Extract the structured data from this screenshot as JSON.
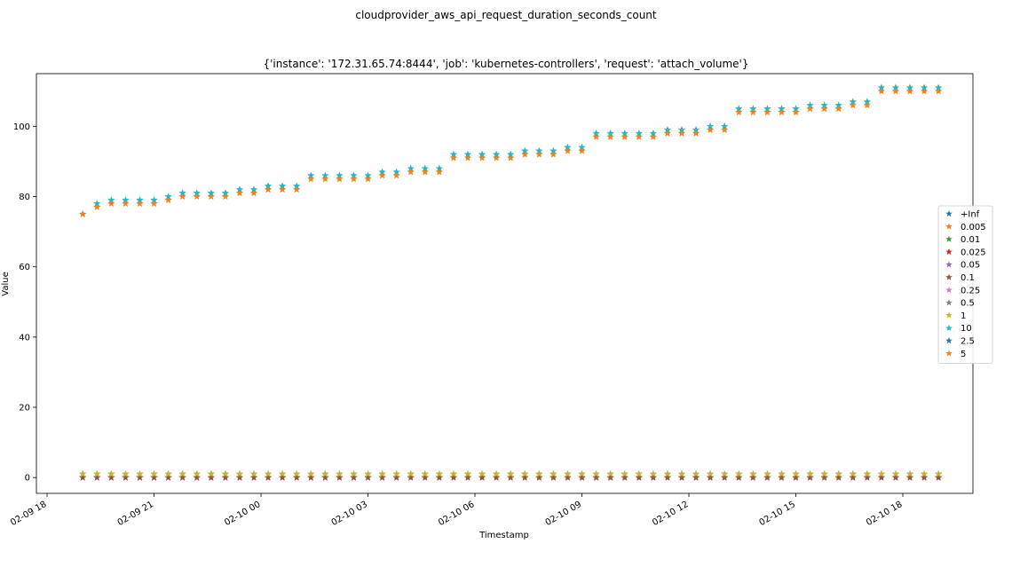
{
  "chart_data": {
    "type": "scatter",
    "title": "cloudprovider_aws_api_request_duration_seconds_count",
    "subtitle": "{'instance': '172.31.65.74:8444', 'job': 'kubernetes-controllers', 'request': 'attach_volume'}",
    "xlabel": "Timestamp",
    "ylabel": "Value",
    "xlim": [
      "2025-02-09 17:42",
      "2025-02-10 19:58"
    ],
    "ylim": [
      -4.5,
      115
    ],
    "x_ticks": [
      "02-09 18",
      "02-09 21",
      "02-10 00",
      "02-10 03",
      "02-10 06",
      "02-10 09",
      "02-10 12",
      "02-10 15",
      "02-10 18"
    ],
    "y_ticks": [
      "0",
      "20",
      "40",
      "60",
      "80",
      "100"
    ],
    "marker": "star",
    "grid": false,
    "legend_position": "center-right",
    "x": [
      "2025-02-09 19:00",
      "2025-02-09 19:24",
      "2025-02-09 19:48",
      "2025-02-09 20:12",
      "2025-02-09 20:36",
      "2025-02-09 21:00",
      "2025-02-09 21:24",
      "2025-02-09 21:48",
      "2025-02-09 22:12",
      "2025-02-09 22:36",
      "2025-02-09 23:00",
      "2025-02-09 23:24",
      "2025-02-09 23:48",
      "2025-02-10 00:12",
      "2025-02-10 00:36",
      "2025-02-10 01:00",
      "2025-02-10 01:24",
      "2025-02-10 01:48",
      "2025-02-10 02:12",
      "2025-02-10 02:36",
      "2025-02-10 03:00",
      "2025-02-10 03:24",
      "2025-02-10 03:48",
      "2025-02-10 04:12",
      "2025-02-10 04:36",
      "2025-02-10 05:00",
      "2025-02-10 05:24",
      "2025-02-10 05:48",
      "2025-02-10 06:12",
      "2025-02-10 06:36",
      "2025-02-10 07:00",
      "2025-02-10 07:24",
      "2025-02-10 07:48",
      "2025-02-10 08:12",
      "2025-02-10 08:36",
      "2025-02-10 09:00",
      "2025-02-10 09:24",
      "2025-02-10 09:48",
      "2025-02-10 10:12",
      "2025-02-10 10:36",
      "2025-02-10 11:00",
      "2025-02-10 11:24",
      "2025-02-10 11:48",
      "2025-02-10 12:12",
      "2025-02-10 12:36",
      "2025-02-10 13:00",
      "2025-02-10 13:24",
      "2025-02-10 13:48",
      "2025-02-10 14:12",
      "2025-02-10 14:36",
      "2025-02-10 15:00",
      "2025-02-10 15:24",
      "2025-02-10 15:48",
      "2025-02-10 16:12",
      "2025-02-10 16:36",
      "2025-02-10 17:00",
      "2025-02-10 17:24",
      "2025-02-10 17:48",
      "2025-02-10 18:12",
      "2025-02-10 18:36",
      "2025-02-10 19:00"
    ],
    "series": [
      {
        "name": "+Inf",
        "color": "#1f77b4",
        "values": [
          75,
          78,
          79,
          79,
          79,
          79,
          80,
          81,
          81,
          81,
          81,
          82,
          82,
          83,
          83,
          83,
          86,
          86,
          86,
          86,
          86,
          87,
          87,
          88,
          88,
          88,
          92,
          92,
          92,
          92,
          92,
          93,
          93,
          93,
          94,
          94,
          98,
          98,
          98,
          98,
          98,
          99,
          99,
          99,
          100,
          100,
          105,
          105,
          105,
          105,
          105,
          106,
          106,
          106,
          107,
          107,
          111,
          111,
          111,
          111,
          111
        ]
      },
      {
        "name": "0.005",
        "color": "#ff7f0e",
        "values": [
          0,
          0,
          0,
          0,
          0,
          0,
          0,
          0,
          0,
          0,
          0,
          0,
          0,
          0,
          0,
          0,
          0,
          0,
          0,
          0,
          0,
          0,
          0,
          0,
          0,
          0,
          0,
          0,
          0,
          0,
          0,
          0,
          0,
          0,
          0,
          0,
          0,
          0,
          0,
          0,
          0,
          0,
          0,
          0,
          0,
          0,
          0,
          0,
          0,
          0,
          0,
          0,
          0,
          0,
          0,
          0,
          0,
          0,
          0,
          0,
          0
        ]
      },
      {
        "name": "0.01",
        "color": "#2ca02c",
        "values": [
          0,
          0,
          0,
          0,
          0,
          0,
          0,
          0,
          0,
          0,
          0,
          0,
          0,
          0,
          0,
          0,
          0,
          0,
          0,
          0,
          0,
          0,
          0,
          0,
          0,
          0,
          0,
          0,
          0,
          0,
          0,
          0,
          0,
          0,
          0,
          0,
          0,
          0,
          0,
          0,
          0,
          0,
          0,
          0,
          0,
          0,
          0,
          0,
          0,
          0,
          0,
          0,
          0,
          0,
          0,
          0,
          0,
          0,
          0,
          0,
          0
        ]
      },
      {
        "name": "0.025",
        "color": "#d62728",
        "values": [
          0,
          0,
          0,
          0,
          0,
          0,
          0,
          0,
          0,
          0,
          0,
          0,
          0,
          0,
          0,
          0,
          0,
          0,
          0,
          0,
          0,
          0,
          0,
          0,
          0,
          0,
          0,
          0,
          0,
          0,
          0,
          0,
          0,
          0,
          0,
          0,
          0,
          0,
          0,
          0,
          0,
          0,
          0,
          0,
          0,
          0,
          0,
          0,
          0,
          0,
          0,
          0,
          0,
          0,
          0,
          0,
          0,
          0,
          0,
          0,
          0
        ]
      },
      {
        "name": "0.05",
        "color": "#9467bd",
        "values": [
          0,
          0,
          0,
          0,
          0,
          0,
          0,
          0,
          0,
          0,
          0,
          0,
          0,
          0,
          0,
          0,
          0,
          0,
          0,
          0,
          0,
          0,
          0,
          0,
          0,
          0,
          0,
          0,
          0,
          0,
          0,
          0,
          0,
          0,
          0,
          0,
          0,
          0,
          0,
          0,
          0,
          0,
          0,
          0,
          0,
          0,
          0,
          0,
          0,
          0,
          0,
          0,
          0,
          0,
          0,
          0,
          0,
          0,
          0,
          0,
          0
        ]
      },
      {
        "name": "0.1",
        "color": "#8c564b",
        "values": [
          0,
          0,
          0,
          0,
          0,
          0,
          0,
          0,
          0,
          0,
          0,
          0,
          0,
          0,
          0,
          0,
          0,
          0,
          0,
          0,
          0,
          0,
          0,
          0,
          0,
          0,
          0,
          0,
          0,
          0,
          0,
          0,
          0,
          0,
          0,
          0,
          0,
          0,
          0,
          0,
          0,
          0,
          0,
          0,
          0,
          0,
          0,
          0,
          0,
          0,
          0,
          0,
          0,
          0,
          0,
          0,
          0,
          0,
          0,
          0,
          0
        ]
      },
      {
        "name": "0.25",
        "color": "#e377c2",
        "values": [
          1,
          1,
          1,
          1,
          1,
          1,
          1,
          1,
          1,
          1,
          1,
          1,
          1,
          1,
          1,
          1,
          1,
          1,
          1,
          1,
          1,
          1,
          1,
          1,
          1,
          1,
          1,
          1,
          1,
          1,
          1,
          1,
          1,
          1,
          1,
          1,
          1,
          1,
          1,
          1,
          1,
          1,
          1,
          1,
          1,
          1,
          1,
          1,
          1,
          1,
          1,
          1,
          1,
          1,
          1,
          1,
          1,
          1,
          1,
          1,
          1
        ]
      },
      {
        "name": "0.5",
        "color": "#7f7f7f",
        "values": [
          1,
          1,
          1,
          1,
          1,
          1,
          1,
          1,
          1,
          1,
          1,
          1,
          1,
          1,
          1,
          1,
          1,
          1,
          1,
          1,
          1,
          1,
          1,
          1,
          1,
          1,
          1,
          1,
          1,
          1,
          1,
          1,
          1,
          1,
          1,
          1,
          1,
          1,
          1,
          1,
          1,
          1,
          1,
          1,
          1,
          1,
          1,
          1,
          1,
          1,
          1,
          1,
          1,
          1,
          1,
          1,
          1,
          1,
          1,
          1,
          1
        ]
      },
      {
        "name": "1",
        "color": "#bcbd22",
        "values": [
          1,
          1,
          1,
          1,
          1,
          1,
          1,
          1,
          1,
          1,
          1,
          1,
          1,
          1,
          1,
          1,
          1,
          1,
          1,
          1,
          1,
          1,
          1,
          1,
          1,
          1,
          1,
          1,
          1,
          1,
          1,
          1,
          1,
          1,
          1,
          1,
          1,
          1,
          1,
          1,
          1,
          1,
          1,
          1,
          1,
          1,
          1,
          1,
          1,
          1,
          1,
          1,
          1,
          1,
          1,
          1,
          1,
          1,
          1,
          1,
          1
        ]
      },
      {
        "name": "10",
        "color": "#17becf",
        "values": [
          75,
          78,
          79,
          79,
          79,
          79,
          80,
          81,
          81,
          81,
          81,
          82,
          82,
          83,
          83,
          83,
          86,
          86,
          86,
          86,
          86,
          87,
          87,
          88,
          88,
          88,
          92,
          92,
          92,
          92,
          92,
          93,
          93,
          93,
          94,
          94,
          98,
          98,
          98,
          98,
          98,
          99,
          99,
          99,
          100,
          100,
          105,
          105,
          105,
          105,
          105,
          106,
          106,
          106,
          107,
          107,
          111,
          111,
          111,
          111,
          111
        ]
      },
      {
        "name": "2.5",
        "color": "#1f77b4",
        "values": [
          75,
          77,
          78,
          78,
          78,
          78,
          79,
          80,
          80,
          80,
          80,
          81,
          81,
          82,
          82,
          82,
          85,
          85,
          85,
          85,
          85,
          86,
          86,
          87,
          87,
          87,
          91,
          91,
          91,
          91,
          91,
          92,
          92,
          92,
          93,
          93,
          97,
          97,
          97,
          97,
          97,
          98,
          98,
          98,
          99,
          99,
          104,
          104,
          104,
          104,
          104,
          105,
          105,
          105,
          106,
          106,
          110,
          110,
          110,
          110,
          110
        ]
      },
      {
        "name": "5",
        "color": "#ff7f0e",
        "values": [
          75,
          77,
          78,
          78,
          78,
          78,
          79,
          80,
          80,
          80,
          80,
          81,
          81,
          82,
          82,
          82,
          85,
          85,
          85,
          85,
          85,
          86,
          86,
          87,
          87,
          87,
          91,
          91,
          91,
          91,
          91,
          92,
          92,
          92,
          93,
          93,
          97,
          97,
          97,
          97,
          97,
          98,
          98,
          98,
          99,
          99,
          104,
          104,
          104,
          104,
          104,
          105,
          105,
          105,
          106,
          106,
          110,
          110,
          110,
          110,
          110
        ]
      }
    ]
  }
}
